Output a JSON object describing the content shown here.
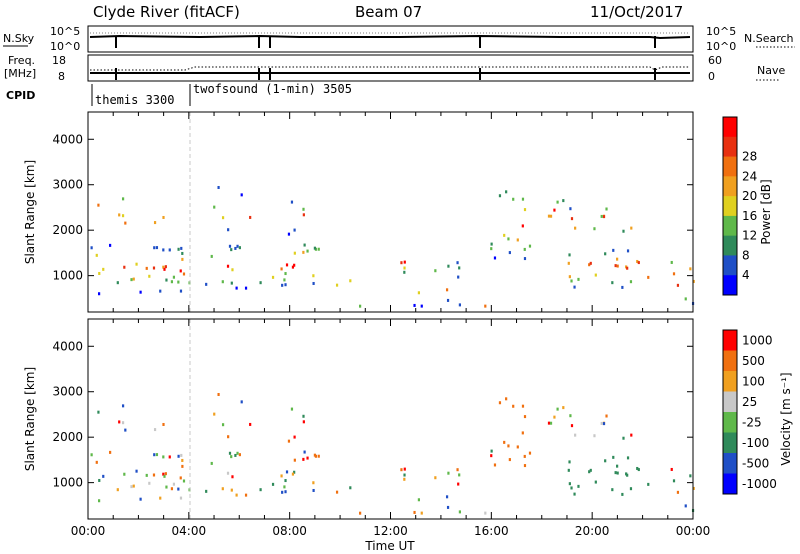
{
  "header": {
    "station": "Clyde River (fitACF)",
    "beam": "Beam 07",
    "date": "11/Oct/2017"
  },
  "panels": {
    "nsky_label": "N.Sky",
    "nsky_ticks": [
      "10^5",
      "10^0"
    ],
    "nsky_right_ticks": [
      "10^5",
      "10^0"
    ],
    "nsearch_label": "N.Search",
    "freq_label_1": "Freq.",
    "freq_label_2": "[MHz]",
    "freq_ticks": [
      "18",
      "8"
    ],
    "nave_ticks": [
      "60",
      "0"
    ],
    "nave_label": "Nave",
    "cpid_label": "CPID",
    "cpid_1": "themis 3300",
    "cpid_2": "twofsound (1-min) 3505"
  },
  "colors": {
    "power_scale": [
      "#0000ff",
      "#1f4fc6",
      "#2f8a5a",
      "#5fb84a",
      "#e0d020",
      "#f0a020",
      "#f07010",
      "#e83010",
      "#ff0000"
    ],
    "velocity_scale": [
      "#0000ff",
      "#1f4fc6",
      "#2f8a5a",
      "#5fb84a",
      "#c8c8c8",
      "#f0a020",
      "#f07010",
      "#ff0000"
    ]
  },
  "chart_data": [
    {
      "type": "heatmap",
      "title": "Power",
      "xlabel": "",
      "ylabel": "Slant Range [km]",
      "x_ticks": [
        "00:00",
        "04:00",
        "08:00",
        "12:00",
        "16:00",
        "20:00",
        "00:00"
      ],
      "y_ticks": [
        "1000",
        "2000",
        "3000",
        "4000"
      ],
      "ylim": [
        200,
        4600
      ],
      "colorbar_label": "Power [dB]",
      "colorbar_ticks": [
        "4",
        "8",
        "12",
        "16",
        "20",
        "24",
        "28"
      ],
      "grid": false
    },
    {
      "type": "heatmap",
      "title": "Velocity",
      "xlabel": "Time UT",
      "ylabel": "Slant Range [km]",
      "x_ticks": [
        "00:00",
        "04:00",
        "08:00",
        "12:00",
        "16:00",
        "20:00",
        "00:00"
      ],
      "y_ticks": [
        "1000",
        "2000",
        "3000",
        "4000"
      ],
      "ylim": [
        200,
        4600
      ],
      "colorbar_label": "Velocity [m s⁻¹]",
      "colorbar_ticks": [
        "1000",
        "500",
        "100",
        "25",
        "-25",
        "-100",
        "-500",
        "-1000"
      ],
      "grid": false
    }
  ]
}
